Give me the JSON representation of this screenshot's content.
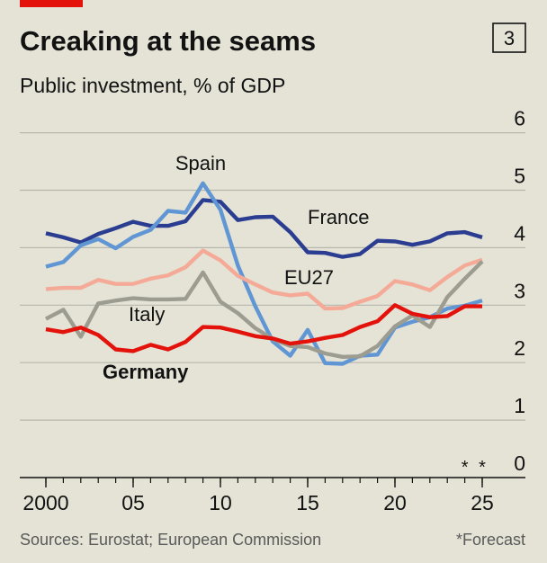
{
  "header": {
    "title": "Creaking at the seams",
    "subtitle": "Public investment, % of GDP",
    "badge": "3",
    "accent_color": "#e3120b"
  },
  "footer": {
    "source": "Sources: Eurostat; European Commission",
    "note": "*Forecast"
  },
  "chart_data": {
    "type": "line",
    "title": "Creaking at the seams",
    "subtitle": "Public investment, % of GDP",
    "ylim": [
      0,
      6
    ],
    "yticks": [
      "0",
      "1",
      "2",
      "3",
      "4",
      "5",
      "6"
    ],
    "xlim": [
      1999,
      2027
    ],
    "xticks": [
      {
        "x": 2000,
        "label": "2000"
      },
      {
        "x": 2005,
        "label": "05"
      },
      {
        "x": 2010,
        "label": "10"
      },
      {
        "x": 2015,
        "label": "15"
      },
      {
        "x": 2020,
        "label": "20"
      },
      {
        "x": 2025,
        "label": "25"
      }
    ],
    "forecast_markers": [
      "*",
      "*"
    ],
    "forecast_years": [
      2024,
      2025
    ],
    "grid": true,
    "legend": "direct labels",
    "x": [
      2000,
      2001,
      2002,
      2003,
      2004,
      2005,
      2006,
      2007,
      2008,
      2009,
      2010,
      2011,
      2012,
      2013,
      2014,
      2015,
      2016,
      2017,
      2018,
      2019,
      2020,
      2021,
      2022,
      2023,
      2024,
      2025
    ],
    "series": [
      {
        "name": "France",
        "color": "#2a3d91",
        "values": [
          4.25,
          4.18,
          4.09,
          4.24,
          4.34,
          4.45,
          4.38,
          4.38,
          4.46,
          4.83,
          4.8,
          4.48,
          4.53,
          4.54,
          4.27,
          3.92,
          3.91,
          3.84,
          3.89,
          4.12,
          4.11,
          4.05,
          4.11,
          4.25,
          4.27,
          4.18
        ]
      },
      {
        "name": "Spain",
        "color": "#6196d4",
        "values": [
          3.67,
          3.75,
          4.04,
          4.15,
          3.99,
          4.19,
          4.31,
          4.64,
          4.61,
          5.12,
          4.66,
          3.69,
          2.98,
          2.37,
          2.12,
          2.57,
          1.99,
          1.98,
          2.12,
          2.14,
          2.61,
          2.71,
          2.79,
          2.94,
          2.99,
          3.08
        ]
      },
      {
        "name": "EU27",
        "color": "#f4aa97",
        "values": [
          3.28,
          3.3,
          3.3,
          3.44,
          3.37,
          3.37,
          3.46,
          3.52,
          3.66,
          3.95,
          3.78,
          3.51,
          3.36,
          3.22,
          3.17,
          3.2,
          2.94,
          2.95,
          3.06,
          3.16,
          3.42,
          3.36,
          3.26,
          3.49,
          3.69,
          3.79
        ]
      },
      {
        "name": "Italy",
        "color": "#9d9c91",
        "values": [
          2.76,
          2.92,
          2.45,
          3.03,
          3.08,
          3.12,
          3.1,
          3.1,
          3.11,
          3.57,
          3.06,
          2.86,
          2.6,
          2.41,
          2.29,
          2.27,
          2.16,
          2.1,
          2.11,
          2.29,
          2.63,
          2.82,
          2.62,
          3.14,
          3.46,
          3.76
        ]
      },
      {
        "name": "Germany",
        "color": "#e3120b",
        "values": [
          2.58,
          2.53,
          2.61,
          2.48,
          2.23,
          2.2,
          2.31,
          2.23,
          2.36,
          2.62,
          2.61,
          2.54,
          2.46,
          2.42,
          2.33,
          2.37,
          2.43,
          2.48,
          2.62,
          2.72,
          3.0,
          2.85,
          2.79,
          2.81,
          2.98,
          2.98
        ]
      }
    ],
    "labels": {
      "spain": "Spain",
      "france": "France",
      "eu27": "EU27",
      "italy": "Italy",
      "germany": "Germany"
    }
  }
}
